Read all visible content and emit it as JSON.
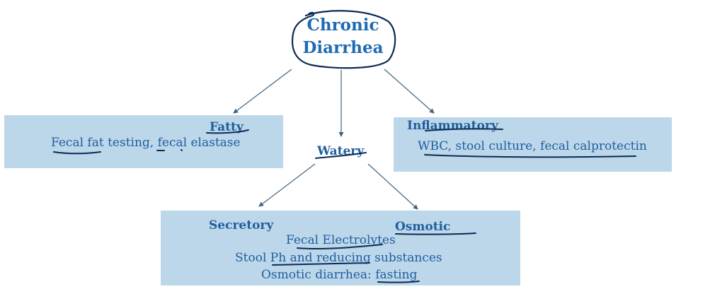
{
  "root": {
    "line1": "Chronic",
    "line2": "Diarrhea"
  },
  "fatty": {
    "heading": "Fatty",
    "tests": "Fecal fat testing, fecal elastase"
  },
  "watery": {
    "heading": "Watery"
  },
  "inflammatory": {
    "heading": "Inflammatory",
    "tests": "WBC, stool culture, fecal calprotectin"
  },
  "watery_box": {
    "secretory": "Secretory",
    "osmotic": "Osmotic",
    "line1": "Fecal Electrolytes",
    "line2": "Stool Ph and reducing substances",
    "line3": "Osmotic diarrhea: fasting"
  },
  "colors": {
    "box_fill": "#bcd6ea",
    "text": "#1f5f9e",
    "title": "#1f6bb3",
    "ink": "#0d2a55",
    "arrow": "#3d6585"
  }
}
